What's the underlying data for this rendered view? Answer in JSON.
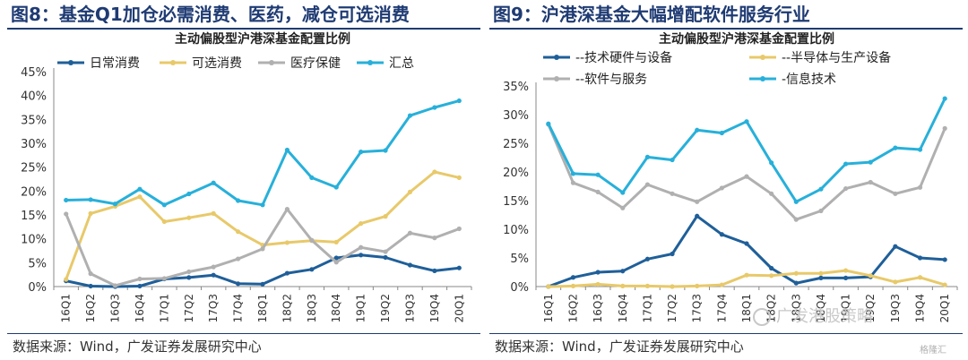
{
  "figures": [
    {
      "title": "图8：基金Q1加仓必需消费、医药，减仓可选消费",
      "source": "数据来源：Wind，广发证券发展研究中心"
    },
    {
      "title": "图9：沪港深基金大幅增配软件服务行业",
      "source": "数据来源：Wind，广发证券发展研究中心"
    }
  ],
  "watermark": {
    "text": "广发港股策略"
  },
  "corner_badge": {
    "text": "格隆汇"
  },
  "chart_data": [
    {
      "type": "line",
      "title": "主动偏股型沪港深基金配置比例",
      "xlabel": "",
      "ylabel": "",
      "ylim": [
        0,
        45
      ],
      "y_ticks": [
        "0%",
        "5%",
        "10%",
        "15%",
        "20%",
        "25%",
        "30%",
        "35%",
        "40%",
        "45%"
      ],
      "grid": false,
      "legend_position": "top",
      "categories": [
        "16Q1",
        "16Q2",
        "16Q3",
        "16Q4",
        "17Q1",
        "17Q2",
        "17Q3",
        "17Q4",
        "18Q1",
        "18Q2",
        "18Q3",
        "18Q4",
        "19Q1",
        "19Q2",
        "19Q3",
        "19Q4",
        "20Q1"
      ],
      "series": [
        {
          "name": "日常消费",
          "color": "#1f5f99",
          "legend_row": 0,
          "values": [
            1.2,
            0.1,
            0.0,
            0.1,
            1.6,
            1.9,
            2.4,
            0.6,
            0.5,
            2.8,
            3.6,
            6.0,
            6.6,
            6.1,
            4.5,
            3.3,
            3.9
          ]
        },
        {
          "name": "可选消费",
          "color": "#e8c96a",
          "legend_row": 0,
          "values": [
            1.5,
            15.3,
            16.8,
            18.8,
            13.6,
            14.4,
            15.3,
            11.5,
            8.7,
            9.2,
            9.6,
            9.3,
            13.2,
            14.7,
            19.8,
            24.0,
            22.8
          ]
        },
        {
          "name": "医疗保健",
          "color": "#b0b0b0",
          "legend_row": 0,
          "values": [
            15.2,
            2.7,
            0.2,
            1.6,
            1.7,
            3.1,
            4.1,
            5.8,
            7.9,
            16.2,
            9.7,
            5.1,
            8.2,
            7.3,
            11.2,
            10.2,
            12.1
          ]
        },
        {
          "name": "汇总",
          "color": "#27b0da",
          "legend_row": 0,
          "values": [
            18.1,
            18.2,
            17.3,
            20.4,
            17.1,
            19.4,
            21.7,
            18.0,
            17.1,
            28.6,
            22.8,
            20.8,
            28.2,
            28.5,
            35.8,
            37.5,
            38.9
          ]
        }
      ]
    },
    {
      "type": "line",
      "title": "主动偏股型沪港深基金配置比例",
      "xlabel": "",
      "ylabel": "",
      "ylim": [
        0,
        35
      ],
      "y_ticks": [
        "0%",
        "5%",
        "10%",
        "15%",
        "20%",
        "25%",
        "30%",
        "35%"
      ],
      "grid": false,
      "legend_position": "top",
      "categories": [
        "16Q1",
        "16Q2",
        "16Q3",
        "16Q4",
        "17Q1",
        "17Q2",
        "17Q3",
        "17Q4",
        "18Q1",
        "18Q2",
        "18Q3",
        "18Q4",
        "19Q1",
        "19Q2",
        "19Q3",
        "19Q4",
        "20Q1"
      ],
      "series": [
        {
          "name": "--技术硬件与设备",
          "color": "#1f5f99",
          "legend_row": 0,
          "values": [
            0.0,
            1.6,
            2.5,
            2.7,
            4.8,
            5.7,
            12.3,
            9.1,
            7.5,
            3.2,
            0.6,
            1.5,
            1.5,
            1.7,
            7.0,
            5.0,
            4.7
          ]
        },
        {
          "name": "--半导体与生产设备",
          "color": "#e8c96a",
          "legend_row": 0,
          "values": [
            0.0,
            0.1,
            0.4,
            0.1,
            0.1,
            0.0,
            0.1,
            0.3,
            2.0,
            1.9,
            2.3,
            2.3,
            2.8,
            1.9,
            0.8,
            1.6,
            0.3
          ]
        },
        {
          "name": "--软件与服务",
          "color": "#b0b0b0",
          "legend_row": 1,
          "values": [
            28.3,
            18.1,
            16.5,
            13.7,
            17.8,
            16.2,
            14.8,
            17.2,
            19.2,
            16.2,
            11.7,
            13.2,
            17.1,
            18.2,
            16.2,
            17.3,
            27.6
          ]
        },
        {
          "name": "-信息技术",
          "color": "#27b0da",
          "legend_row": 1,
          "values": [
            28.4,
            19.7,
            19.5,
            16.4,
            22.6,
            22.1,
            27.3,
            26.8,
            28.8,
            21.6,
            14.8,
            17.0,
            21.4,
            21.7,
            24.2,
            23.9,
            32.8
          ]
        }
      ]
    }
  ]
}
